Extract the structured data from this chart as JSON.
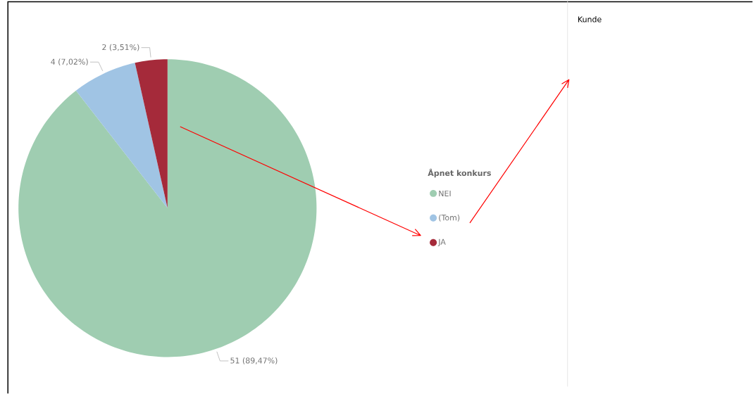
{
  "chart_data": [
    {
      "type": "pie",
      "legend_title": "Åpnet konkurs",
      "legend": "right",
      "categories": [
        "NEI",
        "(Tom)",
        "JA"
      ],
      "values": [
        51,
        4,
        2
      ],
      "colors": [
        "#9fcdb1",
        "#a0c4e4",
        "#a52a3a"
      ],
      "value_labels": [
        "51 (89,47%)",
        "4 (7,02%)",
        "2 (3,51%)"
      ]
    },
    {
      "type": "other",
      "title": "Kunde"
    }
  ]
}
